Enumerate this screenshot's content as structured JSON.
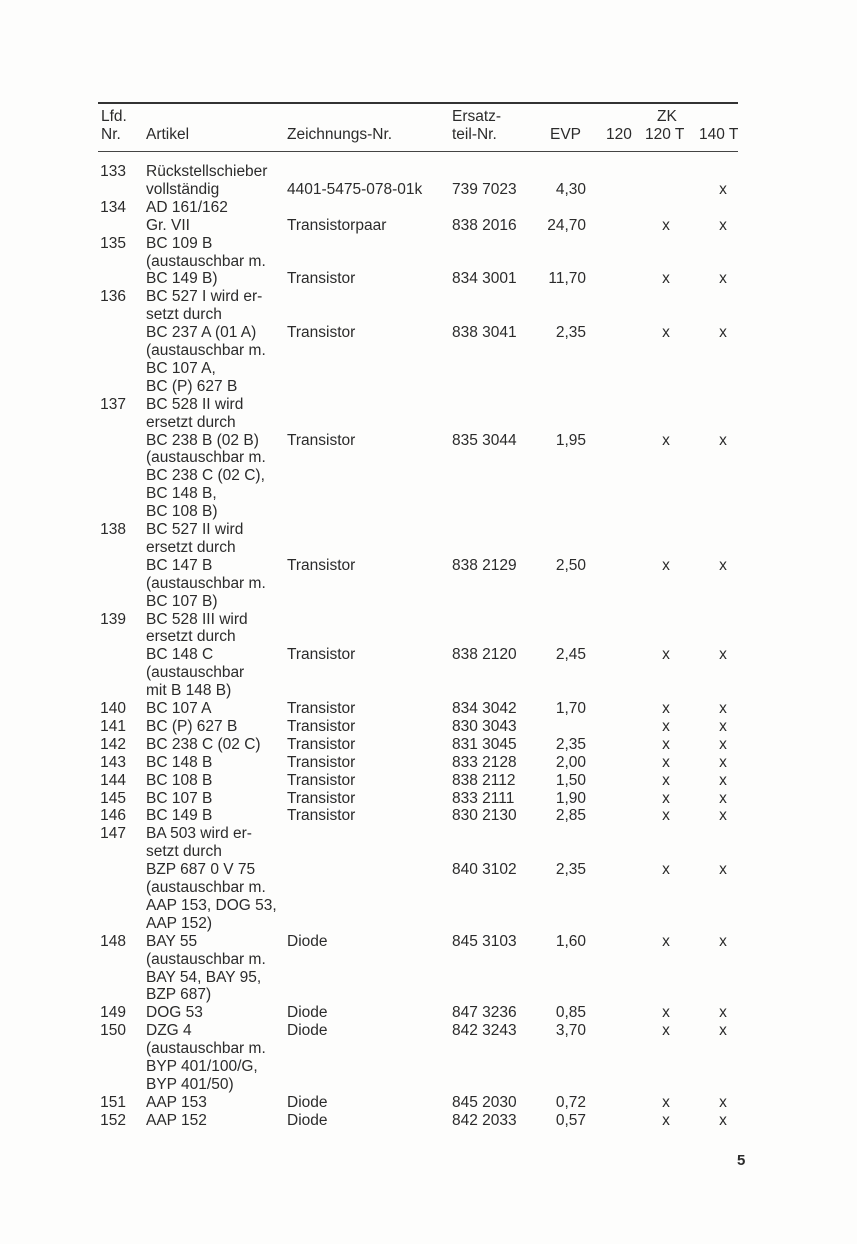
{
  "header": {
    "nr_line1": "Lfd.",
    "nr_line2": "Nr.",
    "artikel": "Artikel",
    "zeichnung": "Zeichnungs-Nr.",
    "ersatzteil_line1": "Ersatz-",
    "ersatzteil_line2": "teil-Nr.",
    "evp": "EVP",
    "zk": "ZK",
    "zk_120": "120",
    "zk_120t": "120 T",
    "zk_140t": "140 T"
  },
  "entries": [
    {
      "nr": "133",
      "lines": [
        "Rückstellschieber",
        "vollständig"
      ],
      "data_line": 1,
      "zeichnung": "4401-5475-078-01k",
      "ersatzteil": "739 7023",
      "evp": "4,30",
      "zk120": "",
      "zk120t": "",
      "zk140t": "x"
    },
    {
      "nr": "134",
      "lines": [
        "AD 161/162",
        "Gr. VII"
      ],
      "data_line": 1,
      "zeichnung": "Transistorpaar",
      "ersatzteil": "838 2016",
      "evp": "24,70",
      "zk120": "",
      "zk120t": "x",
      "zk140t": "x"
    },
    {
      "nr": "135",
      "lines": [
        "BC 109 B",
        "(austauschbar m.",
        "BC 149 B)"
      ],
      "data_line": 2,
      "zeichnung": "Transistor",
      "ersatzteil": "834 3001",
      "evp": "11,70",
      "zk120": "",
      "zk120t": "x",
      "zk140t": "x"
    },
    {
      "nr": "136",
      "lines": [
        "BC 527 I wird er-",
        "setzt durch",
        "BC 237 A (01 A)",
        "(austauschbar m.",
        "BC 107 A,",
        "BC (P) 627 B"
      ],
      "data_line": 2,
      "zeichnung": "Transistor",
      "ersatzteil": "838 3041",
      "evp": "2,35",
      "zk120": "",
      "zk120t": "x",
      "zk140t": "x"
    },
    {
      "nr": "137",
      "lines": [
        "BC 528 II wird",
        "ersetzt durch",
        "BC 238 B (02 B)",
        "(austauschbar m.",
        "BC 238 C (02 C),",
        "BC 148 B,",
        "BC 108 B)"
      ],
      "data_line": 2,
      "zeichnung": "Transistor",
      "ersatzteil": "835 3044",
      "evp": "1,95",
      "zk120": "",
      "zk120t": "x",
      "zk140t": "x"
    },
    {
      "nr": "138",
      "lines": [
        "BC 527 II wird",
        "ersetzt durch",
        "BC 147 B",
        "(austauschbar m.",
        "BC 107 B)"
      ],
      "data_line": 2,
      "zeichnung": "Transistor",
      "ersatzteil": "838 2129",
      "evp": "2,50",
      "zk120": "",
      "zk120t": "x",
      "zk140t": "x"
    },
    {
      "nr": "139",
      "lines": [
        "BC 528 III wird",
        "ersetzt durch",
        "BC 148 C",
        "(austauschbar",
        "mit B 148 B)"
      ],
      "data_line": 2,
      "zeichnung": "Transistor",
      "ersatzteil": "838 2120",
      "evp": "2,45",
      "zk120": "",
      "zk120t": "x",
      "zk140t": "x"
    },
    {
      "nr": "140",
      "lines": [
        "BC 107 A"
      ],
      "data_line": 0,
      "zeichnung": "Transistor",
      "ersatzteil": "834 3042",
      "evp": "1,70",
      "zk120": "",
      "zk120t": "x",
      "zk140t": "x"
    },
    {
      "nr": "141",
      "lines": [
        "BC (P) 627 B"
      ],
      "data_line": 0,
      "zeichnung": "Transistor",
      "ersatzteil": "830 3043",
      "evp": "",
      "zk120": "",
      "zk120t": "x",
      "zk140t": "x"
    },
    {
      "nr": "142",
      "lines": [
        "BC 238 C (02 C)"
      ],
      "data_line": 0,
      "zeichnung": "Transistor",
      "ersatzteil": "831 3045",
      "evp": "2,35",
      "zk120": "",
      "zk120t": "x",
      "zk140t": "x"
    },
    {
      "nr": "143",
      "lines": [
        "BC 148 B"
      ],
      "data_line": 0,
      "zeichnung": "Transistor",
      "ersatzteil": "833 2128",
      "evp": "2,00",
      "zk120": "",
      "zk120t": "x",
      "zk140t": "x"
    },
    {
      "nr": "144",
      "lines": [
        "BC 108 B"
      ],
      "data_line": 0,
      "zeichnung": "Transistor",
      "ersatzteil": "838 2112",
      "evp": "1,50",
      "zk120": "",
      "zk120t": "x",
      "zk140t": "x"
    },
    {
      "nr": "145",
      "lines": [
        "BC 107 B"
      ],
      "data_line": 0,
      "zeichnung": "Transistor",
      "ersatzteil": "833 2111",
      "evp": "1,90",
      "zk120": "",
      "zk120t": "x",
      "zk140t": "x"
    },
    {
      "nr": "146",
      "lines": [
        "BC 149 B"
      ],
      "data_line": 0,
      "zeichnung": "Transistor",
      "ersatzteil": "830 2130",
      "evp": "2,85",
      "zk120": "",
      "zk120t": "x",
      "zk140t": "x"
    },
    {
      "nr": "147",
      "lines": [
        "BA 503 wird er-",
        "setzt durch",
        "BZP 687 0 V 75",
        "(austauschbar m.",
        "AAP 153, DOG 53,",
        "AAP 152)"
      ],
      "data_line": 2,
      "zeichnung": "",
      "ersatzteil": "840 3102",
      "evp": "2,35",
      "zk120": "",
      "zk120t": "x",
      "zk140t": "x"
    },
    {
      "nr": "148",
      "lines": [
        "BAY 55",
        "(austauschbar m.",
        "BAY 54, BAY 95,",
        "BZP 687)"
      ],
      "data_line": 0,
      "zeichnung": "Diode",
      "ersatzteil": "845 3103",
      "evp": "1,60",
      "zk120": "",
      "zk120t": "x",
      "zk140t": "x"
    },
    {
      "nr": "149",
      "lines": [
        "DOG 53"
      ],
      "data_line": 0,
      "zeichnung": "Diode",
      "ersatzteil": "847 3236",
      "evp": "0,85",
      "zk120": "",
      "zk120t": "x",
      "zk140t": "x"
    },
    {
      "nr": "150",
      "lines": [
        "DZG 4",
        "(austauschbar m.",
        "BYP 401/100/G,",
        "BYP 401/50)"
      ],
      "data_line": 0,
      "zeichnung": "Diode",
      "ersatzteil": "842 3243",
      "evp": "3,70",
      "zk120": "",
      "zk120t": "x",
      "zk140t": "x"
    },
    {
      "nr": "151",
      "lines": [
        "AAP 153"
      ],
      "data_line": 0,
      "zeichnung": "Diode",
      "ersatzteil": "845 2030",
      "evp": "0,72",
      "zk120": "",
      "zk120t": "x",
      "zk140t": "x"
    },
    {
      "nr": "152",
      "lines": [
        "AAP 152"
      ],
      "data_line": 0,
      "zeichnung": "Diode",
      "ersatzteil": "842 2033",
      "evp": "0,57",
      "zk120": "",
      "zk120t": "x",
      "zk140t": "x"
    }
  ],
  "page_number": "5"
}
